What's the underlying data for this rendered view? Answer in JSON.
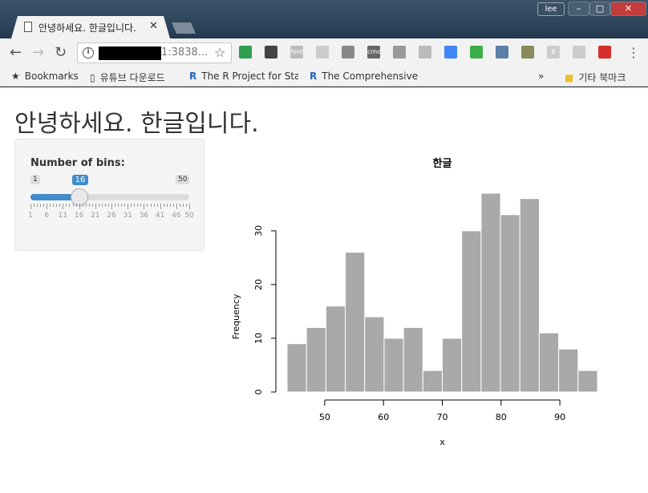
{
  "browser": {
    "tab_title": "안녕하세요. 한글입니다.",
    "user_label": "lee",
    "url_visible": "1:3838...",
    "bookmarks": [
      {
        "label": "Bookmarks"
      },
      {
        "label": "유튜브 다운로드"
      },
      {
        "label": "The R Project for Sta"
      },
      {
        "label": "The Comprehensive"
      }
    ],
    "overflow_label": "»",
    "other_bookmarks": "기타 북마크",
    "extension_labels": {
      "font": "font",
      "ext_dark": "cmd",
      "ext_b": "B"
    }
  },
  "page": {
    "title": "안녕하세요. 한글입니다."
  },
  "slider": {
    "label": "Number of bins:",
    "min": 1,
    "max": 50,
    "value": 16,
    "tick_labels": [
      "1",
      "6",
      "11",
      "16",
      "21",
      "26",
      "31",
      "36",
      "41",
      "46",
      "50"
    ]
  },
  "colors": {
    "accent": "#428bca",
    "bar_fill": "#a9a9a9",
    "bar_stroke": "#ffffff"
  },
  "chart_data": {
    "type": "bar",
    "title": "한글",
    "xlabel": "x",
    "ylabel": "Frequency",
    "bin_edges": [
      43.6,
      46.9,
      50.2,
      53.5,
      56.8,
      60.1,
      63.4,
      66.7,
      70.0,
      73.3,
      76.6,
      79.9,
      83.2,
      86.5,
      89.8,
      93.1,
      96.4
    ],
    "values": [
      9,
      12,
      16,
      26,
      14,
      10,
      12,
      4,
      10,
      30,
      37,
      33,
      36,
      11,
      8,
      4
    ],
    "xticks": [
      50,
      60,
      70,
      80,
      90
    ],
    "yticks": [
      0,
      10,
      20,
      30
    ],
    "xlim": [
      43.6,
      96.4
    ],
    "ylim": [
      0,
      37
    ],
    "grid": false
  }
}
